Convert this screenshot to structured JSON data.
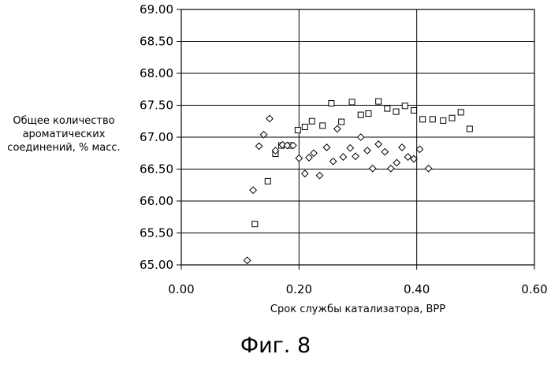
{
  "chart_data": {
    "type": "scatter",
    "title": "",
    "xlabel": "Срок службы катализатора, BPP",
    "ylabel": "Общее количество ароматических соединений, % масс.",
    "xlim": [
      0.0,
      0.6
    ],
    "ylim": [
      65.0,
      69.0
    ],
    "x_ticks": [
      "0.00",
      "0.20",
      "0.40",
      "0.60"
    ],
    "y_ticks": [
      "65.00",
      "65.50",
      "66.00",
      "66.50",
      "67.00",
      "67.50",
      "68.00",
      "68.50",
      "69.00"
    ],
    "grid": "vertical and horizontal major lines",
    "legend": "none",
    "series": [
      {
        "marker": "square",
        "points": [
          [
            0.125,
            65.64
          ],
          [
            0.147,
            66.31
          ],
          [
            0.16,
            66.74
          ],
          [
            0.17,
            66.87
          ],
          [
            0.185,
            66.87
          ],
          [
            0.198,
            67.11
          ],
          [
            0.21,
            67.16
          ],
          [
            0.222,
            67.25
          ],
          [
            0.24,
            67.18
          ],
          [
            0.255,
            67.53
          ],
          [
            0.272,
            67.24
          ],
          [
            0.29,
            67.55
          ],
          [
            0.305,
            67.35
          ],
          [
            0.318,
            67.37
          ],
          [
            0.335,
            67.56
          ],
          [
            0.35,
            67.45
          ],
          [
            0.365,
            67.4
          ],
          [
            0.38,
            67.49
          ],
          [
            0.395,
            67.42
          ],
          [
            0.41,
            67.28
          ],
          [
            0.427,
            67.28
          ],
          [
            0.445,
            67.26
          ],
          [
            0.46,
            67.3
          ],
          [
            0.475,
            67.39
          ],
          [
            0.49,
            67.13
          ]
        ]
      },
      {
        "marker": "diamond",
        "points": [
          [
            0.112,
            65.07
          ],
          [
            0.122,
            66.17
          ],
          [
            0.132,
            66.86
          ],
          [
            0.14,
            67.04
          ],
          [
            0.15,
            67.29
          ],
          [
            0.16,
            66.79
          ],
          [
            0.172,
            66.88
          ],
          [
            0.18,
            66.87
          ],
          [
            0.19,
            66.87
          ],
          [
            0.2,
            66.67
          ],
          [
            0.21,
            66.43
          ],
          [
            0.217,
            66.68
          ],
          [
            0.225,
            66.75
          ],
          [
            0.235,
            66.4
          ],
          [
            0.247,
            66.84
          ],
          [
            0.258,
            66.62
          ],
          [
            0.265,
            67.13
          ],
          [
            0.275,
            66.69
          ],
          [
            0.287,
            66.83
          ],
          [
            0.296,
            66.7
          ],
          [
            0.305,
            67.0
          ],
          [
            0.316,
            66.79
          ],
          [
            0.325,
            66.51
          ],
          [
            0.335,
            66.89
          ],
          [
            0.346,
            66.77
          ],
          [
            0.356,
            66.51
          ],
          [
            0.366,
            66.6
          ],
          [
            0.375,
            66.84
          ],
          [
            0.385,
            66.69
          ],
          [
            0.395,
            66.66
          ],
          [
            0.405,
            66.81
          ],
          [
            0.42,
            66.51
          ]
        ]
      }
    ]
  },
  "figure_caption": "Фиг. 8"
}
